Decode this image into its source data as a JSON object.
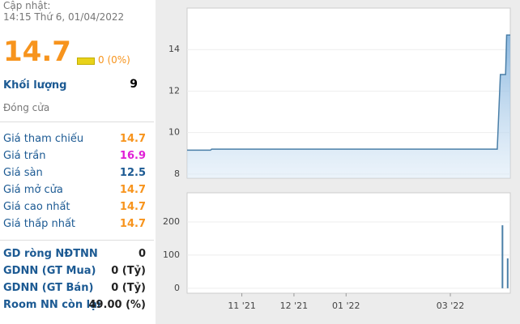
{
  "header": {
    "update_label": "Cập nhật:",
    "update_time": "14:15 Thứ 6, 01/04/2022"
  },
  "price": {
    "value": "14.7",
    "change": "0 (0%)"
  },
  "volume": {
    "label": "Khối lượng",
    "value": "9"
  },
  "close_label": "Đóng cửa",
  "prices": [
    {
      "label": "Giá tham chiếu",
      "value": "14.7",
      "color": "#f7941d"
    },
    {
      "label": "Giá trần",
      "value": "16.9",
      "color": "#e01fd6"
    },
    {
      "label": "Giá sàn",
      "value": "12.5",
      "color": "#1c5a93"
    },
    {
      "label": "Giá mở cửa",
      "value": "14.7",
      "color": "#f7941d"
    },
    {
      "label": "Giá cao nhất",
      "value": "14.7",
      "color": "#f7941d"
    },
    {
      "label": "Giá thấp nhất",
      "value": "14.7",
      "color": "#f7941d"
    }
  ],
  "foreign": [
    {
      "label": "GD ròng NĐTNN",
      "value": "0"
    },
    {
      "label": "GDNN (GT Mua)",
      "value": "0 (Tỷ)"
    },
    {
      "label": "GDNN (GT Bán)",
      "value": "0 (Tỷ)"
    },
    {
      "label": "Room NN còn lại",
      "value": "49.00 (%)"
    }
  ],
  "chart_data": [
    {
      "type": "area",
      "color": "#4a7fa8",
      "x": [
        9.95,
        10.4,
        10.42,
        15.9,
        15.96,
        16.06,
        16.08,
        16.15
      ],
      "values": [
        9.15,
        9.15,
        9.2,
        9.2,
        12.8,
        12.8,
        14.7,
        14.7
      ],
      "xlim": [
        9.95,
        16.15
      ],
      "ylim": [
        7.8,
        16
      ],
      "yticks": [
        8,
        10,
        12,
        14
      ],
      "grid": true
    },
    {
      "type": "bar",
      "color": "#4a7fa8",
      "x": [
        16.0,
        16.1
      ],
      "values": [
        190,
        90
      ],
      "xlim": [
        9.95,
        16.15
      ],
      "ylim": [
        -15,
        288
      ],
      "yticks": [
        0,
        100,
        200
      ],
      "grid": true,
      "xticks": [
        {
          "value": 11,
          "label": "11 '21"
        },
        {
          "value": 12,
          "label": "12 '21"
        },
        {
          "value": 13,
          "label": "01 '22"
        },
        {
          "value": 15,
          "label": "03 '22"
        }
      ]
    }
  ]
}
